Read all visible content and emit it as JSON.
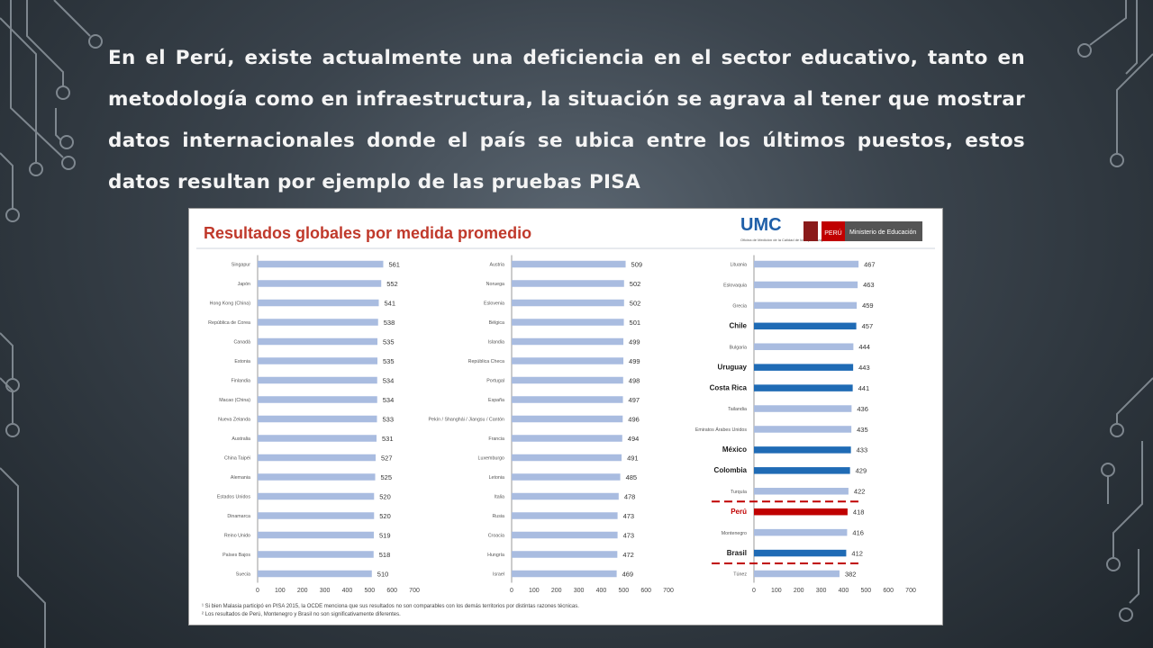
{
  "slide": {
    "text": "En el Perú, existe actualmente una deficiencia en el sector educativo, tanto en metodología como en infraestructura, la situación se agrava al tener que mostrar datos internacionales donde el país se ubica entre los últimos puestos, estos datos resultan por ejemplo de las pruebas PISA"
  },
  "figure": {
    "logo_text": "UMC",
    "logo_subtitle": "Oficina de Medición de la Calidad de los Aprendizajes",
    "ministry_tag": "PERÚ",
    "ministry_name": "Ministerio de Educación",
    "footnotes": [
      "¹ Si bien Malasia participó en PISA 2015, la OCDE menciona que sus resultados no son comparables con los demás territorios por distintas razones técnicas.",
      "² Los resultados de Perú, Montenegro y Brasil no son significativamente diferentes."
    ]
  },
  "colors": {
    "bar_default": "#a9bce0",
    "bar_latam": "#1f6bb5",
    "bar_peru": "#c00000",
    "title": "#c0392b",
    "divider": "#c00000"
  },
  "chart_data": {
    "type": "bar",
    "orientation": "horizontal",
    "title": "Resultados globales por medida promedio",
    "xlim": [
      0,
      700
    ],
    "xticks": [
      0,
      100,
      200,
      300,
      400,
      500,
      600,
      700
    ],
    "panels": [
      {
        "categories": [
          "Singapur",
          "Japón",
          "Hong Kong (China)",
          "República de Corea",
          "Canadá",
          "Estonia",
          "Finlandia",
          "Macao (China)",
          "Nueva Zelanda",
          "Australia",
          "China Taipéi",
          "Alemania",
          "Estados Unidos",
          "Dinamarca",
          "Reino Unido",
          "Países Bajos",
          "Suecia"
        ],
        "values": [
          561,
          552,
          541,
          538,
          535,
          535,
          534,
          534,
          533,
          531,
          527,
          525,
          520,
          520,
          519,
          518,
          510
        ],
        "highlight": [
          "",
          "",
          "",
          "",
          "",
          "",
          "",
          "",
          "",
          "",
          "",
          "",
          "",
          "",
          "",
          "",
          ""
        ]
      },
      {
        "categories": [
          "Austria",
          "Noruega",
          "Eslovenia",
          "Bélgica",
          "Islandia",
          "República Checa",
          "Portugal",
          "España",
          "Pekín / Shanghái / Jiangsu / Cantón",
          "Francia",
          "Luxemburgo",
          "Letonia",
          "Italia",
          "Rusia",
          "Croacia",
          "Hungría",
          "Israel"
        ],
        "values": [
          509,
          502,
          502,
          501,
          499,
          499,
          498,
          497,
          496,
          494,
          491,
          485,
          478,
          473,
          473,
          472,
          469
        ],
        "highlight": [
          "",
          "",
          "",
          "",
          "",
          "",
          "",
          "",
          "",
          "",
          "",
          "",
          "",
          "",
          "",
          "",
          ""
        ]
      },
      {
        "categories": [
          "Lituania",
          "Eslovaquia",
          "Grecia",
          "Chile",
          "Bulgaria",
          "Uruguay",
          "Costa Rica",
          "Tailandia",
          "Emiratos Árabes Unidos",
          "México",
          "Colombia",
          "Turquía",
          "Perú",
          "Montenegro",
          "Brasil",
          "Túnez"
        ],
        "values": [
          467,
          463,
          459,
          457,
          444,
          443,
          441,
          436,
          435,
          433,
          429,
          422,
          418,
          416,
          412,
          382
        ],
        "highlight": [
          "",
          "",
          "",
          "latam",
          "",
          "latam",
          "latam",
          "",
          "",
          "latam",
          "latam",
          "",
          "peru",
          "",
          "latam",
          ""
        ]
      }
    ]
  }
}
